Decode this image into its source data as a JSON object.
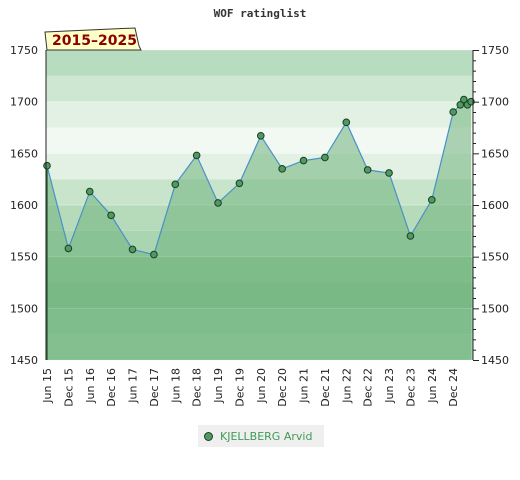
{
  "badge": "2015–2025",
  "chart_data": {
    "type": "line",
    "title": "WOF ratinglist",
    "ylim": [
      1450,
      1750
    ],
    "yticks": [
      1450,
      1500,
      1550,
      1600,
      1650,
      1700,
      1750
    ],
    "xtick_labels": [
      "Jun 15",
      "Dec 15",
      "Jun 16",
      "Dec 16",
      "Jun 17",
      "Dec 17",
      "Jun 18",
      "Dec 18",
      "Jun 19",
      "Dec 19",
      "Jun 20",
      "Dec 20",
      "Jun 21",
      "Dec 21",
      "Jun 22",
      "Dec 22",
      "Jun 23",
      "Dec 23",
      "Jun 24",
      "Dec 24"
    ],
    "legend_position": "bottom",
    "series": [
      {
        "name": "KJELLBERG Arvid",
        "color": "#4f9a60",
        "points": [
          {
            "x": "Jun 15",
            "y": 1638
          },
          {
            "x": "Dec 15",
            "y": 1558
          },
          {
            "x": "Jun 16",
            "y": 1613
          },
          {
            "x": "Dec 16",
            "y": 1590
          },
          {
            "x": "Jun 17",
            "y": 1557
          },
          {
            "x": "Dec 17",
            "y": 1552
          },
          {
            "x": "Jun 18",
            "y": 1620
          },
          {
            "x": "Dec 18",
            "y": 1648
          },
          {
            "x": "Jun 19",
            "y": 1602
          },
          {
            "x": "Dec 19",
            "y": 1621
          },
          {
            "x": "Jun 20",
            "y": 1667
          },
          {
            "x": "Dec 20",
            "y": 1635
          },
          {
            "x": "Jun 21",
            "y": 1643
          },
          {
            "x": "Dec 21",
            "y": 1646
          },
          {
            "x": "Jun 22",
            "y": 1680
          },
          {
            "x": "Dec 22",
            "y": 1634
          },
          {
            "x": "Jun 23",
            "y": 1631
          },
          {
            "x": "Dec 23",
            "y": 1570
          },
          {
            "x": "Jun 24",
            "y": 1605
          },
          {
            "x": "Dec 24",
            "y": 1690
          },
          {
            "x": "Feb 25",
            "y": 1697
          },
          {
            "x": "Mar 25",
            "y": 1702
          },
          {
            "x": "Apr 25",
            "y": 1697
          },
          {
            "x": "May 25",
            "y": 1700
          }
        ]
      }
    ]
  }
}
